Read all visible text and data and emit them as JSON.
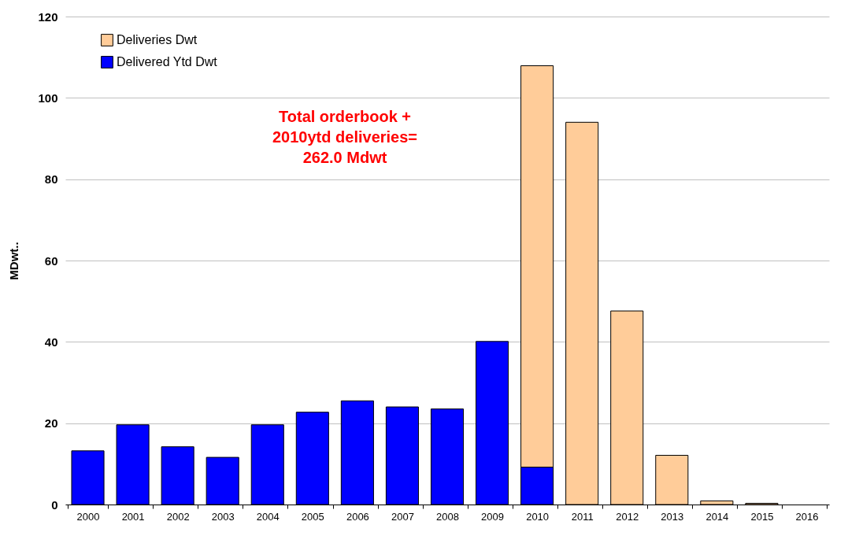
{
  "chart_data": {
    "type": "bar",
    "stacked": true,
    "ylabel": "MDwt..",
    "categories": [
      "2000",
      "2001",
      "2002",
      "2003",
      "2004",
      "2005",
      "2006",
      "2007",
      "2008",
      "2009",
      "2010",
      "2011",
      "2012",
      "2013",
      "2014",
      "2015",
      "2016"
    ],
    "series": [
      {
        "name": "Delivered Ytd Dwt",
        "color": "#0000ff",
        "values": [
          13.2,
          19.6,
          14.2,
          11.6,
          19.6,
          22.7,
          25.5,
          24.0,
          23.5,
          40.1,
          9.2,
          null,
          null,
          null,
          null,
          null,
          null
        ]
      },
      {
        "name": "Deliveries Dwt",
        "color": "#ffcc99",
        "values": [
          null,
          null,
          null,
          null,
          null,
          null,
          null,
          null,
          null,
          null,
          98.7,
          94.0,
          47.6,
          12.1,
          0.9,
          0.3,
          null
        ]
      }
    ],
    "ylim": [
      0,
      120
    ],
    "yticks": [
      0,
      20,
      40,
      60,
      80,
      100,
      120
    ],
    "grid": "y",
    "legend": "top left",
    "annotations": [
      "Total orderbook +\n2010ytd deliveries=\n262.0 Mdwt"
    ]
  }
}
